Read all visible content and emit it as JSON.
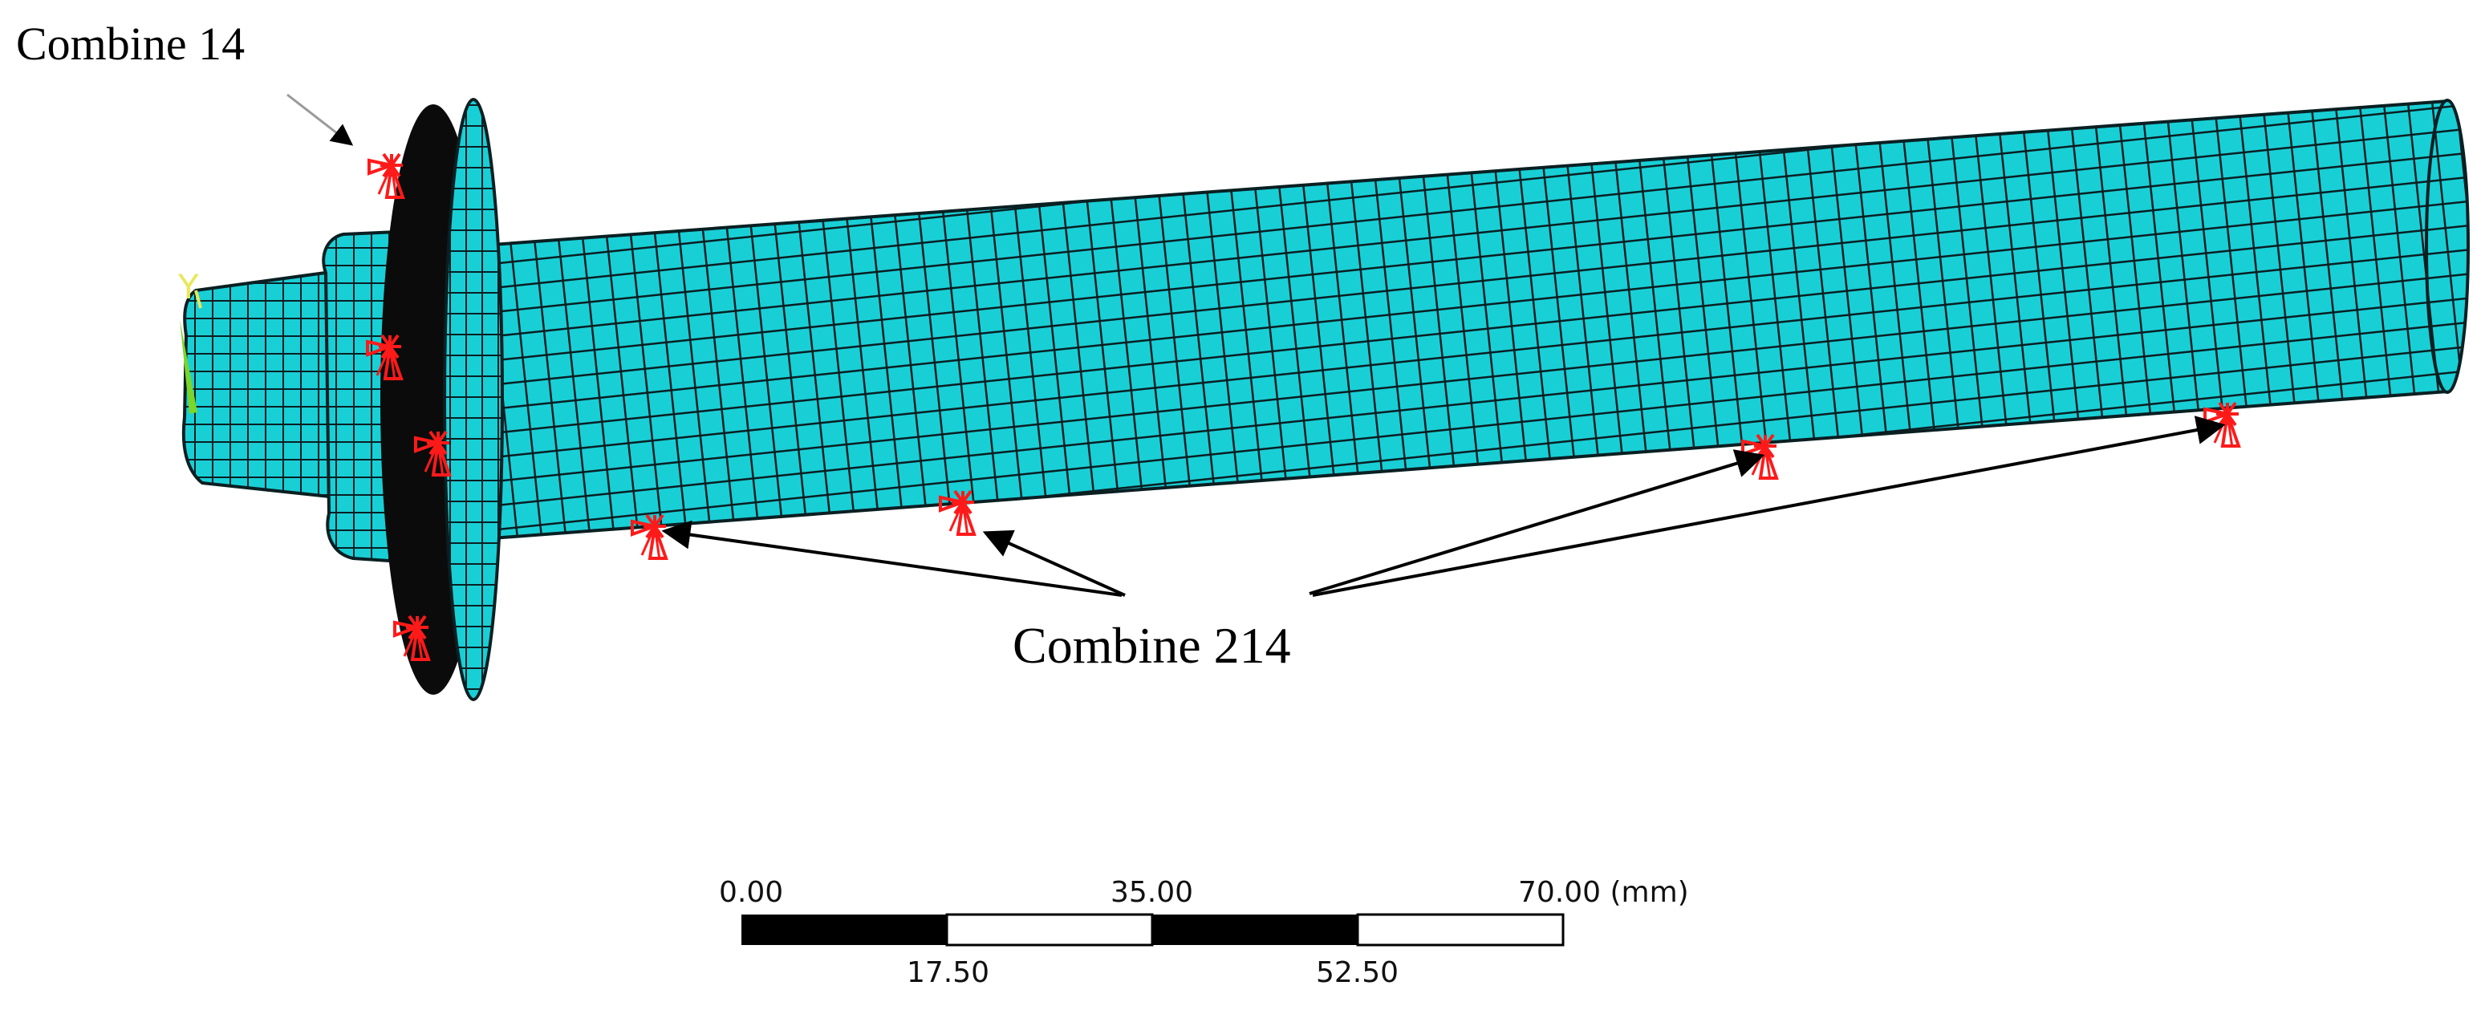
{
  "annotations": {
    "combine14_label": "Combine 14",
    "combine214_label": "Combine 214"
  },
  "axis_triad": {
    "y_label": "Y"
  },
  "scale_bar": {
    "top_labels": [
      "0.00",
      "35.00",
      "70.00 (mm)"
    ],
    "bottom_labels": [
      "17.50",
      "52.50"
    ]
  },
  "colors": {
    "mesh_fill": "#19cfd6",
    "mesh_lines": "#0a1f22",
    "spring_symbol": "#ff1a1a",
    "triad_green": "#7ad62a",
    "triad_yellow": "#e8e85a"
  },
  "icons": {
    "spring_element": "spring-element-icon",
    "coordinate_triad": "coordinate-triad-icon"
  }
}
